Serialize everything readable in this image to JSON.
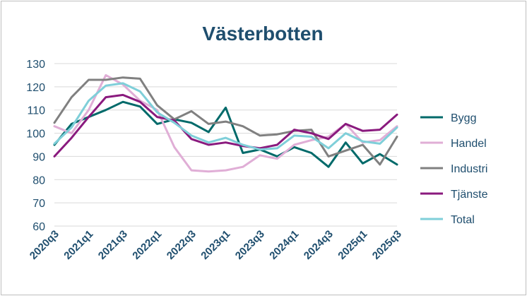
{
  "chart_data": {
    "type": "line",
    "title": "Västerbotten",
    "xlabel": "",
    "ylabel": "",
    "ylim": [
      60,
      130
    ],
    "yticks": [
      60,
      70,
      80,
      90,
      100,
      110,
      120,
      130
    ],
    "grid": "horizontal",
    "legend_position": "right",
    "categories": [
      "2020q3",
      "2020q4",
      "2021q1",
      "2021q2",
      "2021q3",
      "2021q4",
      "2022q1",
      "2022q2",
      "2022q3",
      "2022q4",
      "2023q1",
      "2023q2",
      "2023q3",
      "2023q4",
      "2024q1",
      "2024q2",
      "2024q3",
      "2024q4",
      "2025q1",
      "2025q2",
      "2025q3"
    ],
    "tick_labels": [
      "2020q3",
      "2021q1",
      "2021q3",
      "2022q1",
      "2022q3",
      "2023q1",
      "2023q3",
      "2024q1",
      "2024q3",
      "2025q1",
      "2025q3"
    ],
    "series": [
      {
        "name": "Bygg",
        "color": "#006a6a",
        "values": [
          95,
          104,
          107,
          110,
          113.5,
          111.5,
          104,
          106,
          104.5,
          100.5,
          111,
          91.5,
          93,
          90,
          94,
          91.5,
          85.5,
          96,
          87,
          91,
          86.5
        ]
      },
      {
        "name": "Handel",
        "color": "#e0aed6",
        "values": [
          103,
          100,
          110,
          125,
          121,
          114,
          110,
          94,
          84,
          83.5,
          84,
          85.5,
          90.5,
          89,
          95,
          97,
          98.5,
          104,
          96,
          97,
          103
        ]
      },
      {
        "name": "Industri",
        "color": "#808080",
        "values": [
          104.5,
          115.5,
          123,
          123,
          124,
          123.5,
          112,
          106,
          109.5,
          104,
          105,
          103,
          99,
          99.5,
          101,
          101.5,
          90,
          92.5,
          95,
          86.5,
          98.5
        ]
      },
      {
        "name": "Tjänste",
        "color": "#8a1a7e",
        "values": [
          90,
          98,
          107,
          115.5,
          116.5,
          113.5,
          107,
          105.5,
          97.5,
          95,
          96,
          94.5,
          93.5,
          95,
          101.5,
          100,
          97.5,
          104,
          101,
          101.5,
          108
        ]
      },
      {
        "name": "Total",
        "color": "#7fcfd9",
        "values": [
          95.5,
          102.5,
          114,
          120.5,
          121.5,
          118,
          109,
          104.5,
          99,
          96,
          98,
          95,
          93,
          93.5,
          99,
          98.5,
          93.5,
          100,
          96.5,
          95.5,
          102.5
        ]
      }
    ]
  },
  "colors": {
    "title": "#1f4e6e",
    "axis_text": "#1f4e6e",
    "grid": "#d9d9d9"
  }
}
